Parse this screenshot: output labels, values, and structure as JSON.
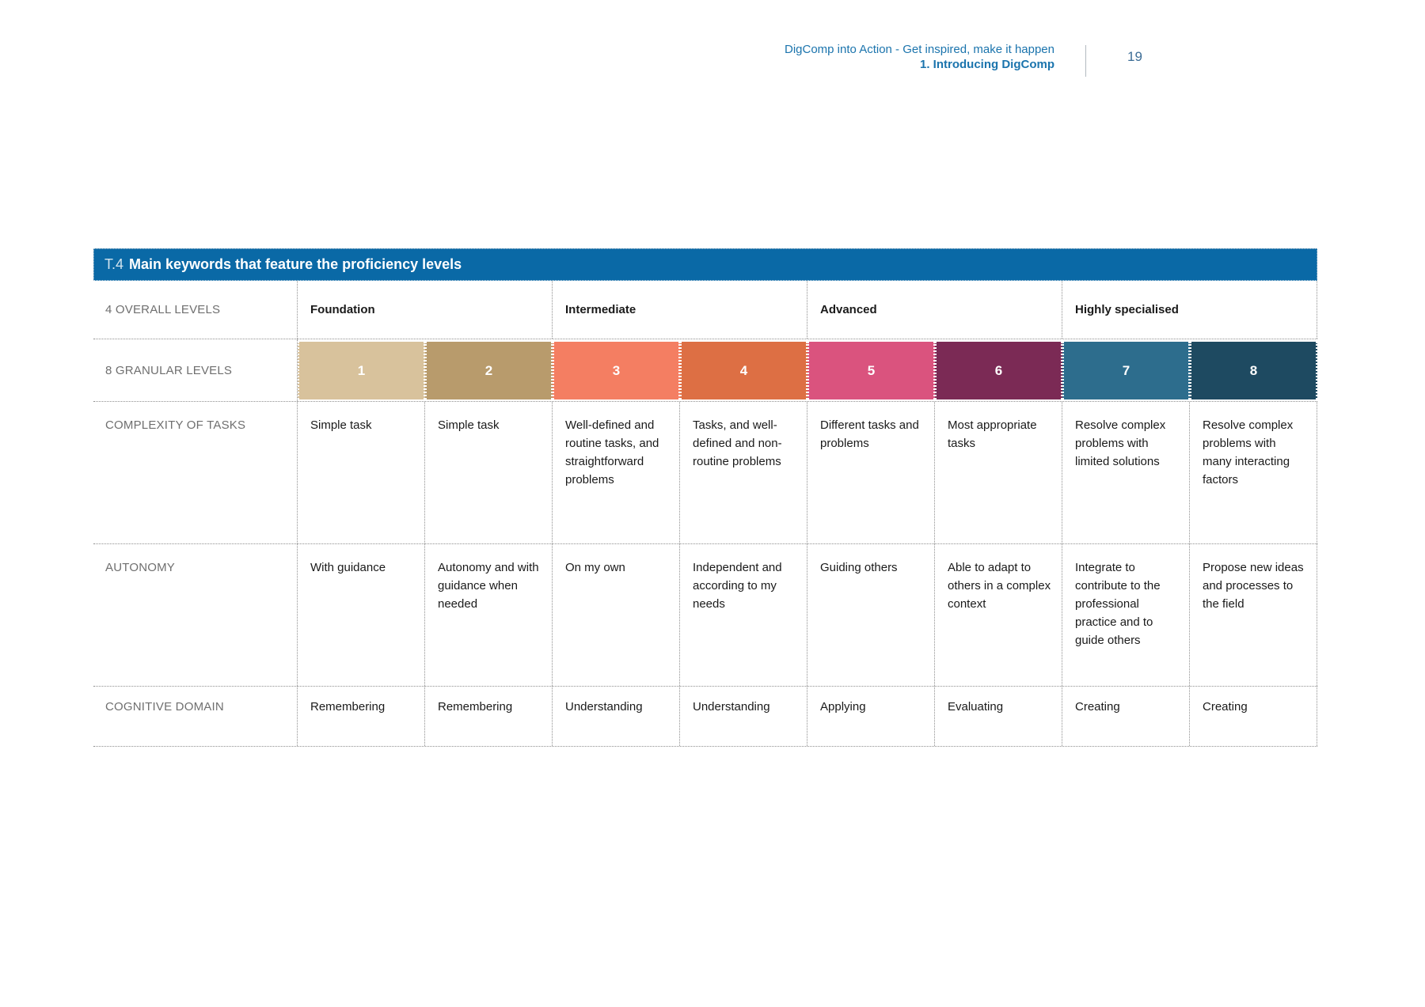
{
  "page": {
    "number": "19"
  },
  "header": {
    "line1": "DigComp into Action - Get inspired, make it happen",
    "line2": "1. Introducing DigComp",
    "text_color": "#1b74ad"
  },
  "table": {
    "title_prefix": "T.4",
    "title": "Main keywords that feature the proficiency levels",
    "title_bar_color": "#0a69a6",
    "row_labels": {
      "overall": "4 OVERALL LEVELS",
      "granular": "8 GRANULAR LEVELS",
      "complexity": "COMPLEXITY OF TASKS",
      "autonomy": "AUTONOMY",
      "cognitive": "COGNITIVE DOMAIN"
    },
    "overall_levels": [
      "Foundation",
      "Intermediate",
      "Advanced",
      "Highly specialised"
    ],
    "levels": [
      {
        "number": "1",
        "color": "#d8c29c",
        "complexity": "Simple task",
        "autonomy": "With guidance",
        "cognitive": "Remembering"
      },
      {
        "number": "2",
        "color": "#b89b6c",
        "complexity": "Simple task",
        "autonomy": "Autonomy and with guidance when needed",
        "cognitive": "Remembering"
      },
      {
        "number": "3",
        "color": "#f47e62",
        "complexity": "Well-defined and routine tasks, and straightforward problems",
        "autonomy": "On my own",
        "cognitive": "Understanding"
      },
      {
        "number": "4",
        "color": "#dd6f44",
        "complexity": "Tasks, and well-defined and non-routine problems",
        "autonomy": "Independent and according to my needs",
        "cognitive": "Understanding"
      },
      {
        "number": "5",
        "color": "#da537e",
        "complexity": "Different tasks and problems",
        "autonomy": "Guiding others",
        "cognitive": "Applying"
      },
      {
        "number": "6",
        "color": "#7b2a55",
        "complexity": "Most appropriate tasks",
        "autonomy": "Able to adapt to others in a complex context",
        "cognitive": "Evaluating"
      },
      {
        "number": "7",
        "color": "#2d6d8d",
        "complexity": "Resolve complex problems with limited solutions",
        "autonomy": "Integrate to contribute to the professional practice and to guide others",
        "cognitive": "Creating"
      },
      {
        "number": "8",
        "color": "#1e4a61",
        "complexity": "Resolve complex problems with many interacting factors",
        "autonomy": "Propose new ideas and processes to the field",
        "cognitive": "Creating"
      }
    ]
  }
}
